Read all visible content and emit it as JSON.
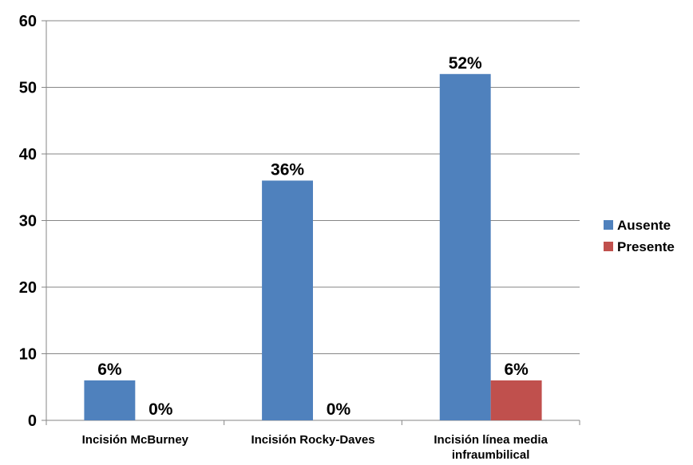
{
  "chart_data": {
    "type": "bar",
    "categories": [
      [
        "Incisión McBurney"
      ],
      [
        "Incisión Rocky-Daves"
      ],
      [
        "Incisión línea media",
        "infraumbilical"
      ]
    ],
    "series": [
      {
        "name": "Ausente",
        "color": "#4F81BD",
        "values": [
          6,
          36,
          52
        ],
        "labels": [
          "6%",
          "36%",
          "52%"
        ]
      },
      {
        "name": "Presente",
        "color": "#C0504D",
        "values": [
          0,
          0,
          6
        ],
        "labels": [
          "0%",
          "0%",
          "6%"
        ]
      }
    ],
    "ylim": [
      0,
      60
    ],
    "yticks": [
      "0",
      "10",
      "20",
      "30",
      "40",
      "50",
      "60"
    ],
    "grid": true,
    "legend": "right"
  }
}
